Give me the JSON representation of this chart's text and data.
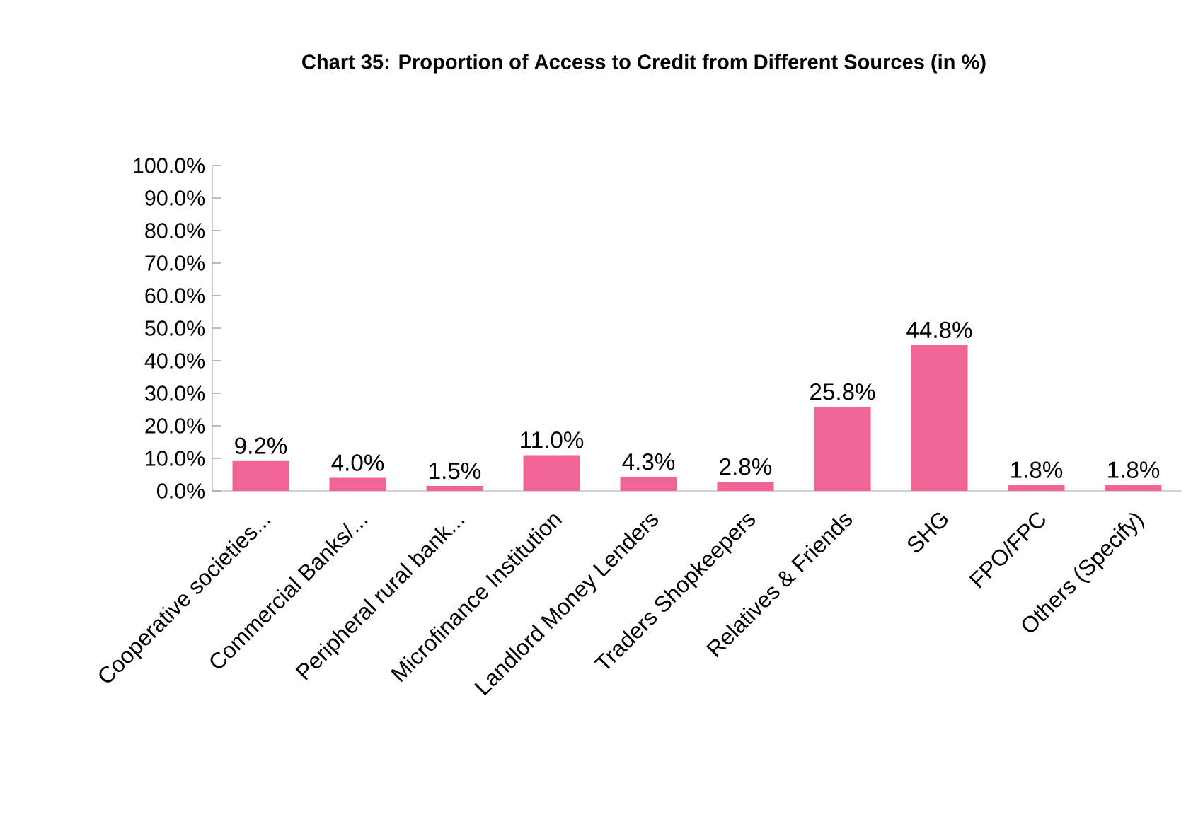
{
  "chart_data": {
    "type": "bar",
    "title": "Chart 35: Proportion of Access to Credit from Different Sources (in %)",
    "categories": [
      "Cooperative societies...",
      "Commercial Banks/...",
      "Peripheral rural bank...",
      "Microfinance Institution",
      "Landlord Money Lenders",
      "Traders Shopkeepers",
      "Relatives & Friends",
      "SHG",
      "FPO/FPC",
      "Others (Specify)"
    ],
    "values": [
      9.2,
      4.0,
      1.5,
      11.0,
      4.3,
      2.8,
      25.8,
      44.8,
      1.8,
      1.8
    ],
    "value_labels": [
      "9.2%",
      "4.0%",
      "1.5%",
      "11.0%",
      "4.3%",
      "2.8%",
      "25.8%",
      "44.8%",
      "1.8%",
      "1.8%"
    ],
    "color": "#f06595",
    "ylim": [
      0,
      100
    ],
    "yticks": [
      {
        "value": 0,
        "label": "0.0%"
      },
      {
        "value": 10,
        "label": "10.0%"
      },
      {
        "value": 20,
        "label": "20.0%"
      },
      {
        "value": 30,
        "label": "30.0%"
      },
      {
        "value": 40,
        "label": "40.0%"
      },
      {
        "value": 50,
        "label": "50.0%"
      },
      {
        "value": 60,
        "label": "60.0%"
      },
      {
        "value": 70,
        "label": "70.0%"
      },
      {
        "value": 80,
        "label": "80.0%"
      },
      {
        "value": 90,
        "label": "90.0%"
      },
      {
        "value": 100,
        "label": "100.0%"
      }
    ],
    "grid": false
  }
}
